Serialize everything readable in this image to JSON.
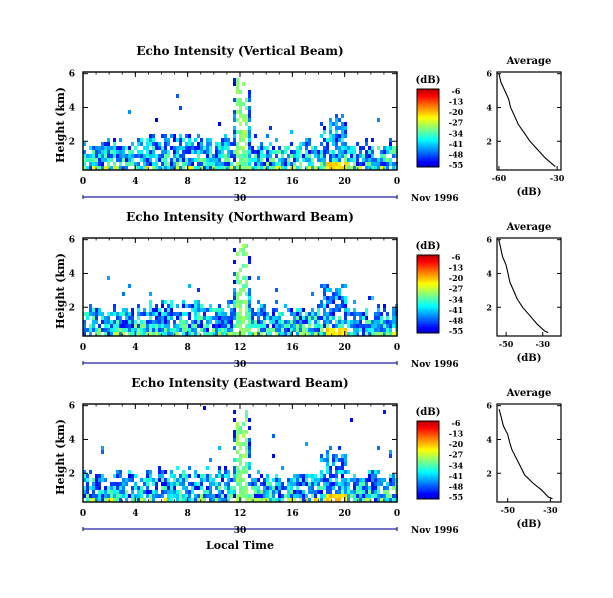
{
  "chart_data": [
    {
      "type": "heatmap",
      "title": "Echo Intensity (Vertical Beam)",
      "ylabel": "Height (km)",
      "xlim": [
        0,
        24
      ],
      "ylim": [
        0.3,
        6.1
      ],
      "xticks": [
        "0",
        "4",
        "8",
        "12",
        "16",
        "20",
        "0"
      ],
      "yticks": [
        "2",
        "4",
        "6"
      ],
      "date_labels": [
        "30",
        "Nov 1996"
      ],
      "colorbar": {
        "label": "(dB)",
        "ticks": [
          "-6",
          "-13",
          "-20",
          "-27",
          "-34",
          "-41",
          "-48",
          "-55"
        ]
      },
      "profile": {
        "title": "Average",
        "xlabel": "(dB)",
        "xlim": [
          -61,
          -28
        ],
        "ylim": [
          0.3,
          6.1
        ],
        "xticks": [
          "-60",
          "-30"
        ],
        "yticks": [
          "2",
          "4",
          "6"
        ],
        "points": [
          [
            -60,
            6.0
          ],
          [
            -59,
            5.5
          ],
          [
            -57,
            5.0
          ],
          [
            -55,
            4.5
          ],
          [
            -54,
            4.0
          ],
          [
            -52,
            3.5
          ],
          [
            -50,
            3.0
          ],
          [
            -47,
            2.5
          ],
          [
            -44,
            2.0
          ],
          [
            -40,
            1.5
          ],
          [
            -36,
            1.0
          ],
          [
            -33,
            0.7
          ],
          [
            -31,
            0.5
          ]
        ]
      }
    },
    {
      "type": "heatmap",
      "title": "Echo Intensity (Northward Beam)",
      "ylabel": "Height (km)",
      "xlim": [
        0,
        24
      ],
      "ylim": [
        0.3,
        6.1
      ],
      "xticks": [
        "0",
        "4",
        "8",
        "12",
        "16",
        "20",
        "0"
      ],
      "yticks": [
        "2",
        "4",
        "6"
      ],
      "date_labels": [
        "30",
        "Nov 1996"
      ],
      "colorbar": {
        "label": "(dB)",
        "ticks": [
          "-6",
          "-13",
          "-20",
          "-27",
          "-34",
          "-41",
          "-48",
          "-55"
        ]
      },
      "profile": {
        "title": "Average",
        "xlabel": "(dB)",
        "xlim": [
          -55,
          -20
        ],
        "ylim": [
          0.3,
          6.1
        ],
        "xticks": [
          "-50",
          "-30"
        ],
        "yticks": [
          "2",
          "4",
          "6"
        ],
        "points": [
          [
            -54,
            6.0
          ],
          [
            -53,
            5.5
          ],
          [
            -52,
            5.0
          ],
          [
            -50,
            4.5
          ],
          [
            -49,
            4.0
          ],
          [
            -48,
            3.5
          ],
          [
            -46,
            3.0
          ],
          [
            -44,
            2.5
          ],
          [
            -41,
            2.0
          ],
          [
            -37,
            1.5
          ],
          [
            -33,
            1.0
          ],
          [
            -29,
            0.6
          ],
          [
            -27,
            0.5
          ]
        ]
      }
    },
    {
      "type": "heatmap",
      "title": "Echo Intensity (Eastward Beam)",
      "ylabel": "Height (km)",
      "xlim": [
        0,
        24
      ],
      "ylim": [
        0.3,
        6.1
      ],
      "xticks": [
        "0",
        "4",
        "8",
        "12",
        "16",
        "20",
        "0"
      ],
      "yticks": [
        "2",
        "4",
        "6"
      ],
      "date_labels": [
        "30",
        "Nov 1996"
      ],
      "colorbar": {
        "label": "(dB)",
        "ticks": [
          "-6",
          "-13",
          "-20",
          "-27",
          "-34",
          "-41",
          "-48",
          "-55"
        ]
      },
      "xlabel": "Local Time",
      "profile": {
        "title": "Average",
        "xlabel": "(dB)",
        "xlim": [
          -55,
          -25
        ],
        "ylim": [
          0.3,
          6.1
        ],
        "xticks": [
          "-50",
          "-30"
        ],
        "yticks": [
          "2",
          "4",
          "6"
        ],
        "points": [
          [
            -54,
            5.8
          ],
          [
            -53,
            5.3
          ],
          [
            -52,
            4.8
          ],
          [
            -50,
            4.3
          ],
          [
            -49,
            3.8
          ],
          [
            -48,
            3.4
          ],
          [
            -46,
            2.9
          ],
          [
            -44,
            2.4
          ],
          [
            -42,
            1.9
          ],
          [
            -38,
            1.4
          ],
          [
            -34,
            1.0
          ],
          [
            -31,
            0.6
          ],
          [
            -29,
            0.5
          ]
        ]
      }
    }
  ]
}
